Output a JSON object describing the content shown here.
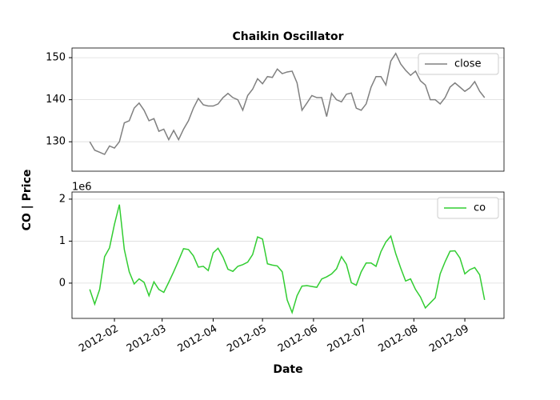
{
  "supylabel": "CO | Price",
  "chart_data": [
    {
      "type": "line",
      "title": "Chaikin Oscillator",
      "x": [
        17,
        20,
        23,
        26,
        29,
        32,
        35,
        38,
        41,
        44,
        47,
        50,
        53,
        56,
        59,
        62,
        65,
        68,
        71,
        74,
        77,
        80,
        83,
        86,
        89,
        92,
        95,
        98,
        101,
        104,
        107,
        110,
        113,
        116,
        119,
        122,
        125,
        128,
        131,
        134,
        137,
        140,
        143,
        146,
        149,
        152,
        155,
        158,
        161,
        164,
        167,
        170,
        173,
        176,
        179,
        182,
        185,
        188,
        191,
        194,
        197,
        200,
        203,
        206,
        209,
        212,
        215,
        218,
        221,
        224,
        227,
        230,
        233,
        236,
        239,
        242,
        245,
        248,
        251,
        254,
        257
      ],
      "series": [
        {
          "name": "close",
          "color": "#808080",
          "values": [
            130,
            128,
            127.5,
            127,
            129,
            128.5,
            130,
            134.5,
            135,
            138,
            139.2,
            137.5,
            135,
            135.5,
            132.5,
            133,
            130.5,
            132.7,
            130.5,
            133,
            135,
            138,
            140.3,
            138.8,
            138.5,
            138.5,
            139,
            140.5,
            141.5,
            140.5,
            140,
            137.5,
            141,
            142.5,
            145,
            143.8,
            145.5,
            145.3,
            147.3,
            146.2,
            146.6,
            146.8,
            144,
            137.5,
            139.2,
            141,
            140.5,
            140.5,
            136,
            141.5,
            140,
            139.5,
            141.3,
            141.6,
            138,
            137.5,
            139,
            143,
            145.5,
            145.5,
            143.5,
            149.2,
            151,
            148.5,
            147,
            145.8,
            146.8,
            144.5,
            143.5,
            140,
            140,
            139,
            140.5,
            143,
            144,
            143,
            142,
            142.8,
            144.3,
            142,
            140.5
          ]
        }
      ],
      "xlim": [
        6.2,
        268.8
      ],
      "ylim": [
        123,
        152.3
      ],
      "yticks": [
        130,
        140,
        150
      ],
      "grid": true,
      "legend": "upper right"
    },
    {
      "type": "line",
      "xlabel": "Date",
      "y_offset_label": "1e6",
      "x": [
        17,
        20,
        23,
        26,
        29,
        32,
        35,
        38,
        41,
        44,
        47,
        50,
        53,
        56,
        59,
        62,
        65,
        68,
        71,
        74,
        77,
        80,
        83,
        86,
        89,
        92,
        95,
        98,
        101,
        104,
        107,
        110,
        113,
        116,
        119,
        122,
        125,
        128,
        131,
        134,
        137,
        140,
        143,
        146,
        149,
        152,
        155,
        158,
        161,
        164,
        167,
        170,
        173,
        176,
        179,
        182,
        185,
        188,
        191,
        194,
        197,
        200,
        203,
        206,
        209,
        212,
        215,
        218,
        221,
        224,
        227,
        230,
        233,
        236,
        239,
        242,
        245,
        248,
        251,
        254,
        257
      ],
      "series": [
        {
          "name": "co",
          "color": "#32cd32",
          "values": [
            -0.15,
            -0.5,
            -0.15,
            0.63,
            0.84,
            1.4,
            1.87,
            0.8,
            0.27,
            -0.02,
            0.1,
            0.02,
            -0.3,
            0.03,
            -0.15,
            -0.22,
            0.02,
            0.27,
            0.54,
            0.82,
            0.8,
            0.65,
            0.38,
            0.4,
            0.3,
            0.72,
            0.83,
            0.62,
            0.33,
            0.28,
            0.4,
            0.44,
            0.5,
            0.68,
            1.1,
            1.05,
            0.46,
            0.43,
            0.41,
            0.27,
            -0.4,
            -0.7,
            -0.3,
            -0.07,
            -0.06,
            -0.08,
            -0.1,
            0.1,
            0.15,
            0.22,
            0.34,
            0.63,
            0.45,
            0.01,
            -0.05,
            0.27,
            0.48,
            0.48,
            0.4,
            0.75,
            0.98,
            1.12,
            0.7,
            0.36,
            0.05,
            0.1,
            -0.15,
            -0.33,
            -0.59,
            -0.47,
            -0.35,
            0.22,
            0.51,
            0.76,
            0.77,
            0.6,
            0.22,
            0.32,
            0.37,
            0.2,
            -0.4
          ]
        }
      ],
      "xlim": [
        6.2,
        268.8
      ],
      "ylim": [
        -0.84,
        2.17
      ],
      "yticks": [
        0,
        1,
        2
      ],
      "xticks": [
        {
          "value": 32,
          "label": "2012-02"
        },
        {
          "value": 61,
          "label": "2012-03"
        },
        {
          "value": 92,
          "label": "2012-04"
        },
        {
          "value": 122,
          "label": "2012-05"
        },
        {
          "value": 153,
          "label": "2012-06"
        },
        {
          "value": 183,
          "label": "2012-07"
        },
        {
          "value": 214,
          "label": "2012-08"
        },
        {
          "value": 245,
          "label": "2012-09"
        }
      ],
      "grid": true,
      "legend": "upper right"
    }
  ]
}
